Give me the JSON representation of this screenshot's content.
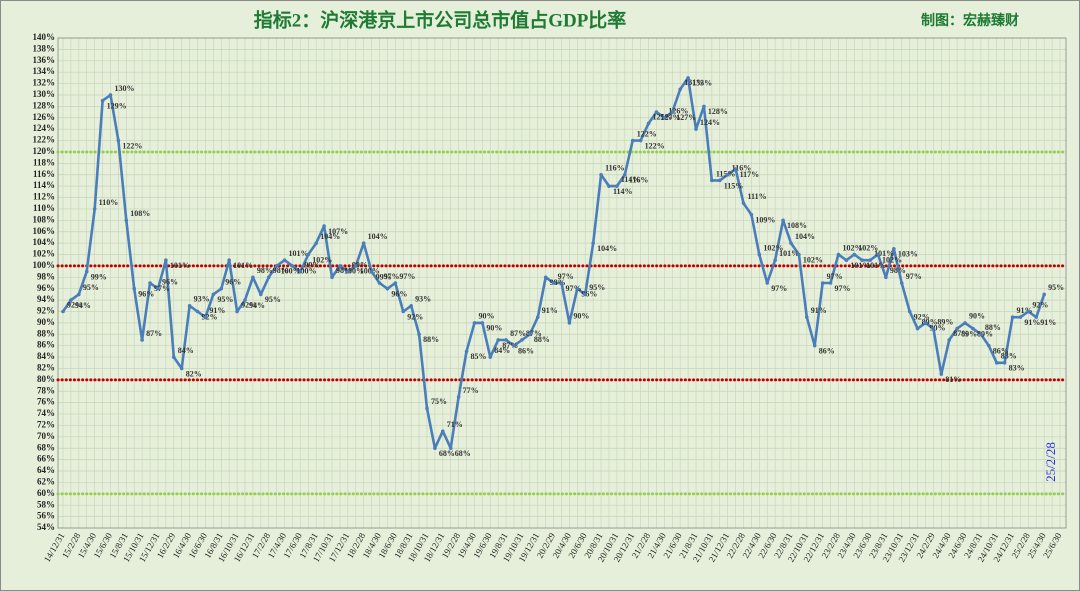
{
  "chart_data": {
    "type": "line",
    "title": "指标2：沪深港京上市公司总市值占GDP比率",
    "subtitle": "制图：宏赫臻财",
    "annotation": "25/2/28",
    "color": "#4a7ebb",
    "grid": true,
    "categories": [
      "14/12/31",
      null,
      "15/2/28",
      null,
      "15/4/30",
      null,
      "15/6/30",
      null,
      "15/8/31",
      null,
      "15/10/31",
      null,
      "15/12/31",
      null,
      "16/2/29",
      null,
      "16/4/30",
      null,
      "16/6/30",
      null,
      "16/8/31",
      null,
      "16/10/31",
      null,
      "16/12/31",
      null,
      "17/2/28",
      null,
      "17/4/30",
      null,
      "17/6/30",
      null,
      "17/8/31",
      null,
      "17/10/31",
      null,
      "17/12/31",
      null,
      "18/2/28",
      null,
      "18/4/30",
      null,
      "18/6/30",
      null,
      "18/8/31",
      null,
      "18/10/31",
      null,
      "18/12/31",
      null,
      "19/2/28",
      null,
      "19/4/30",
      null,
      "19/6/30",
      null,
      "19/8/31",
      null,
      "19/10/31",
      null,
      "19/12/31",
      null,
      "20/2/29",
      null,
      "20/4/30",
      null,
      "20/6/30",
      null,
      "20/8/31",
      null,
      "20/10/31",
      null,
      "20/12/31",
      null,
      "21/2/28",
      null,
      "21/4/30",
      null,
      "21/6/30",
      null,
      "21/8/31",
      null,
      "21/10/31",
      null,
      "21/12/31",
      null,
      "22/2/28",
      null,
      "22/4/30",
      null,
      "22/6/30",
      null,
      "22/8/31",
      null,
      "22/10/31",
      null,
      "22/12/31",
      null,
      "23/2/28",
      null,
      "23/4/30",
      null,
      "23/6/30",
      null,
      "23/8/31",
      null,
      "23/10/31",
      null,
      "23/12/31",
      null,
      "24/2/29",
      null,
      "24/4/30",
      null,
      "24/6/30",
      null,
      "24/8/31",
      null,
      "24/10/31",
      null,
      "24/12/31",
      null,
      "25/2/28",
      null,
      "25/4/30",
      null,
      "25/6/30"
    ],
    "values": [
      92,
      94,
      95,
      99,
      110,
      129,
      130,
      122,
      108,
      96,
      87,
      97,
      96,
      101,
      84,
      82,
      93,
      92,
      91,
      95,
      96,
      101,
      92,
      94,
      98,
      95,
      98,
      100,
      101,
      100,
      99,
      102,
      104,
      107,
      98,
      100,
      99,
      100,
      104,
      99,
      97,
      96,
      97,
      92,
      93,
      88,
      75,
      68,
      71,
      68,
      77,
      85,
      90,
      90,
      84,
      87,
      87,
      86,
      87,
      88,
      91,
      98,
      97,
      97,
      90,
      96,
      95,
      104,
      116,
      114,
      114,
      116,
      122,
      122,
      125,
      127,
      126,
      127,
      131,
      133,
      124,
      128,
      115,
      115,
      116,
      117,
      111,
      109,
      102,
      97,
      101,
      108,
      104,
      102,
      91,
      86,
      97,
      97,
      102,
      101,
      102,
      101,
      101,
      102,
      98,
      103,
      97,
      92,
      89,
      90,
      89,
      81,
      87,
      89,
      90,
      89,
      88,
      86,
      83,
      83,
      91,
      91,
      92,
      91,
      95,
      null,
      null
    ],
    "value_labels": [
      "92%",
      "94%",
      "95%",
      "99%",
      "110%",
      "129%",
      "130%",
      "122%",
      "108%",
      "96%",
      "87%",
      "97%",
      "96%",
      "101%",
      "84%",
      "82%",
      "93%",
      "92%",
      "91%",
      "95%",
      "96%",
      "101%",
      "92%",
      "94%",
      "98%",
      "95%",
      "98%",
      "100%",
      "101%",
      "100%",
      "99%",
      "102%",
      "104%",
      "107%",
      "98%",
      "100%",
      "99%",
      "100%",
      "104%",
      "99%",
      "97%",
      "96%",
      "97%",
      "92%",
      "93%",
      "88%",
      "75%",
      "68%",
      "71%",
      "68%",
      "77%",
      "85%",
      "90%",
      "90%",
      "84%",
      "87%",
      "87%",
      "86%",
      "87%",
      "88%",
      "91%",
      "98%",
      "97%",
      "97%",
      "90%",
      "96%",
      "95%",
      "104%",
      "116%",
      "114%",
      "114%",
      "116%",
      "122%",
      "122%",
      "125%",
      "127%",
      "126%",
      "127%",
      "131%",
      "133%",
      "124%",
      "128%",
      "115%",
      "115%",
      "116%",
      "117%",
      "111%",
      "109%",
      "102%",
      "97%",
      "101%",
      "108%",
      "104%",
      "102%",
      "91%",
      "86%",
      "97%",
      "97%",
      "102%",
      "101%",
      "102%",
      "101%",
      "101%",
      "102%",
      "98%",
      "103%",
      "97%",
      "92%",
      "89%",
      "90%",
      "89%",
      "81%",
      "87%",
      "89%",
      "90%",
      "89%",
      "88%",
      "86%",
      "83%",
      "83%",
      "91%",
      "91%",
      "92%",
      "91%",
      "95%",
      null,
      null
    ],
    "reference_lines": [
      {
        "value": 120,
        "color": "#92d050"
      },
      {
        "value": 100,
        "color": "#c00000"
      },
      {
        "value": 80,
        "color": "#c00000"
      },
      {
        "value": 60,
        "color": "#92d050"
      }
    ],
    "ylim": [
      54,
      140
    ],
    "yticks": [
      {
        "value": 54,
        "label": "54%"
      },
      {
        "value": 56,
        "label": "56%"
      },
      {
        "value": 58,
        "label": "58%"
      },
      {
        "value": 60,
        "label": "60%"
      },
      {
        "value": 62,
        "label": "62%"
      },
      {
        "value": 64,
        "label": "64%"
      },
      {
        "value": 66,
        "label": "66%"
      },
      {
        "value": 68,
        "label": "68%"
      },
      {
        "value": 70,
        "label": "70%"
      },
      {
        "value": 72,
        "label": "72%"
      },
      {
        "value": 74,
        "label": "74%"
      },
      {
        "value": 76,
        "label": "76%"
      },
      {
        "value": 78,
        "label": "78%"
      },
      {
        "value": 80,
        "label": "80%"
      },
      {
        "value": 82,
        "label": "82%"
      },
      {
        "value": 84,
        "label": "84%"
      },
      {
        "value": 86,
        "label": "86%"
      },
      {
        "value": 88,
        "label": "88%"
      },
      {
        "value": 90,
        "label": "90%"
      },
      {
        "value": 92,
        "label": "92%"
      },
      {
        "value": 94,
        "label": "94%"
      },
      {
        "value": 96,
        "label": "96%"
      },
      {
        "value": 98,
        "label": "98%"
      },
      {
        "value": 100,
        "label": "100%"
      },
      {
        "value": 102,
        "label": "102%"
      },
      {
        "value": 104,
        "label": "104%"
      },
      {
        "value": 106,
        "label": "106%"
      },
      {
        "value": 108,
        "label": "108%"
      },
      {
        "value": 110,
        "label": "110%"
      },
      {
        "value": 112,
        "label": "112%"
      },
      {
        "value": 114,
        "label": "114%"
      },
      {
        "value": 116,
        "label": "116%"
      },
      {
        "value": 118,
        "label": "118%"
      },
      {
        "value": 120,
        "label": "120%"
      },
      {
        "value": 122,
        "label": "122%"
      },
      {
        "value": 124,
        "label": "124%"
      },
      {
        "value": 126,
        "label": "126%"
      },
      {
        "value": 128,
        "label": "128%"
      },
      {
        "value": 130,
        "label": "130%"
      },
      {
        "value": 132,
        "label": "132%"
      },
      {
        "value": 134,
        "label": "134%"
      },
      {
        "value": 136,
        "label": "136%"
      },
      {
        "value": 138,
        "label": "138%"
      },
      {
        "value": 140,
        "label": "140%"
      }
    ]
  }
}
